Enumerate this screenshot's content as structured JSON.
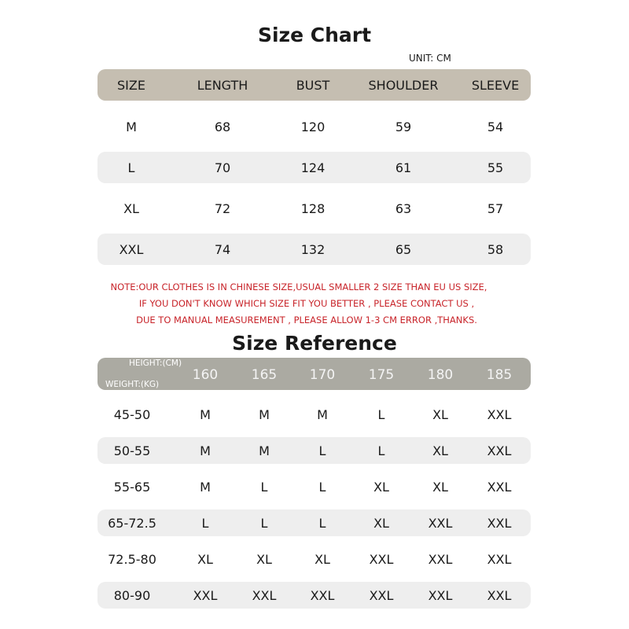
{
  "size_chart": {
    "title": "Size Chart",
    "unit": "UNIT: CM",
    "headers": [
      "SIZE",
      "LENGTH",
      "BUST",
      "SHOULDER",
      "SLEEVE"
    ],
    "rows": [
      [
        "M",
        "68",
        "120",
        "59",
        "54"
      ],
      [
        "L",
        "70",
        "124",
        "61",
        "55"
      ],
      [
        "XL",
        "72",
        "128",
        "63",
        "57"
      ],
      [
        "XXL",
        "74",
        "132",
        "65",
        "58"
      ]
    ]
  },
  "notes": [
    "NOTE:OUR CLOTHES IS IN CHINESE SIZE,USUAL SMALLER 2 SIZE THAN EU US SIZE,",
    "IF YOU DON'T KNOW WHICH SIZE FIT YOU BETTER , PLEASE CONTACT US ,",
    "DUE TO MANUAL MEASUREMENT , PLEASE ALLOW 1-3 CM ERROR ,THANKS."
  ],
  "size_reference": {
    "title": "Size Reference",
    "height_label": "HEIGHT:(CM)",
    "weight_label": "WEIGHT:(KG)",
    "heights": [
      "160",
      "165",
      "170",
      "175",
      "180",
      "185"
    ],
    "rows": [
      [
        "45-50",
        "M",
        "M",
        "M",
        "L",
        "XL",
        "XXL"
      ],
      [
        "50-55",
        "M",
        "M",
        "L",
        "L",
        "XL",
        "XXL"
      ],
      [
        "55-65",
        "M",
        "L",
        "L",
        "XL",
        "XL",
        "XXL"
      ],
      [
        "65-72.5",
        "L",
        "L",
        "L",
        "XL",
        "XXL",
        "XXL"
      ],
      [
        "72.5-80",
        "XL",
        "XL",
        "XL",
        "XXL",
        "XXL",
        "XXL"
      ],
      [
        "80-90",
        "XXL",
        "XXL",
        "XXL",
        "XXL",
        "XXL",
        "XXL"
      ]
    ]
  },
  "colors": {
    "header1": "#c5beb1",
    "header2": "#abaaa2",
    "band": "#eeeeee",
    "note": "#c8242a"
  }
}
